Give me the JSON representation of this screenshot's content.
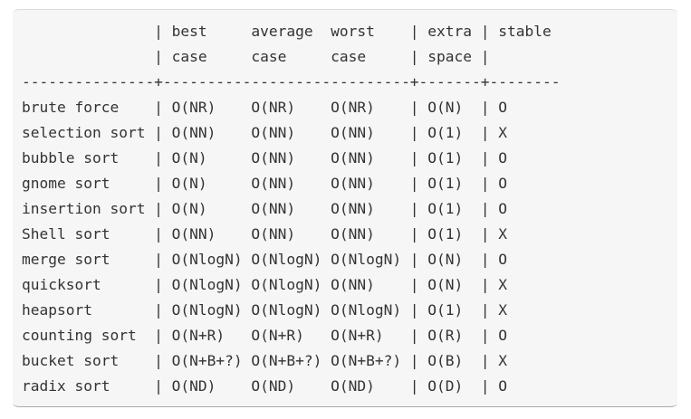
{
  "table": {
    "lines": [
      "               | best     average  worst    | extra | stable",
      "               | case     case     case     | space |",
      "---------------+----------------------------+-------+--------",
      "brute force    | O(NR)    O(NR)    O(NR)    | O(N)  | O",
      "selection sort | O(NN)    O(NN)    O(NN)    | O(1)  | X",
      "bubble sort    | O(N)     O(NN)    O(NN)    | O(1)  | O",
      "gnome sort     | O(N)     O(NN)    O(NN)    | O(1)  | O",
      "insertion sort | O(N)     O(NN)    O(NN)    | O(1)  | O",
      "Shell sort     | O(NN)    O(NN)    O(NN)    | O(1)  | X",
      "merge sort     | O(NlogN) O(NlogN) O(NlogN) | O(N)  | O",
      "quicksort      | O(NlogN) O(NlogN) O(NN)    | O(N)  | X",
      "heapsort       | O(NlogN) O(NlogN) O(NlogN) | O(1)  | X",
      "counting sort  | O(N+R)   O(N+R)   O(N+R)   | O(R)  | O",
      "bucket sort    | O(N+B+?) O(N+B+?) O(N+B+?) | O(B)  | X",
      "radix sort     | O(ND)    O(ND)    O(ND)    | O(D)  | O"
    ]
  }
}
